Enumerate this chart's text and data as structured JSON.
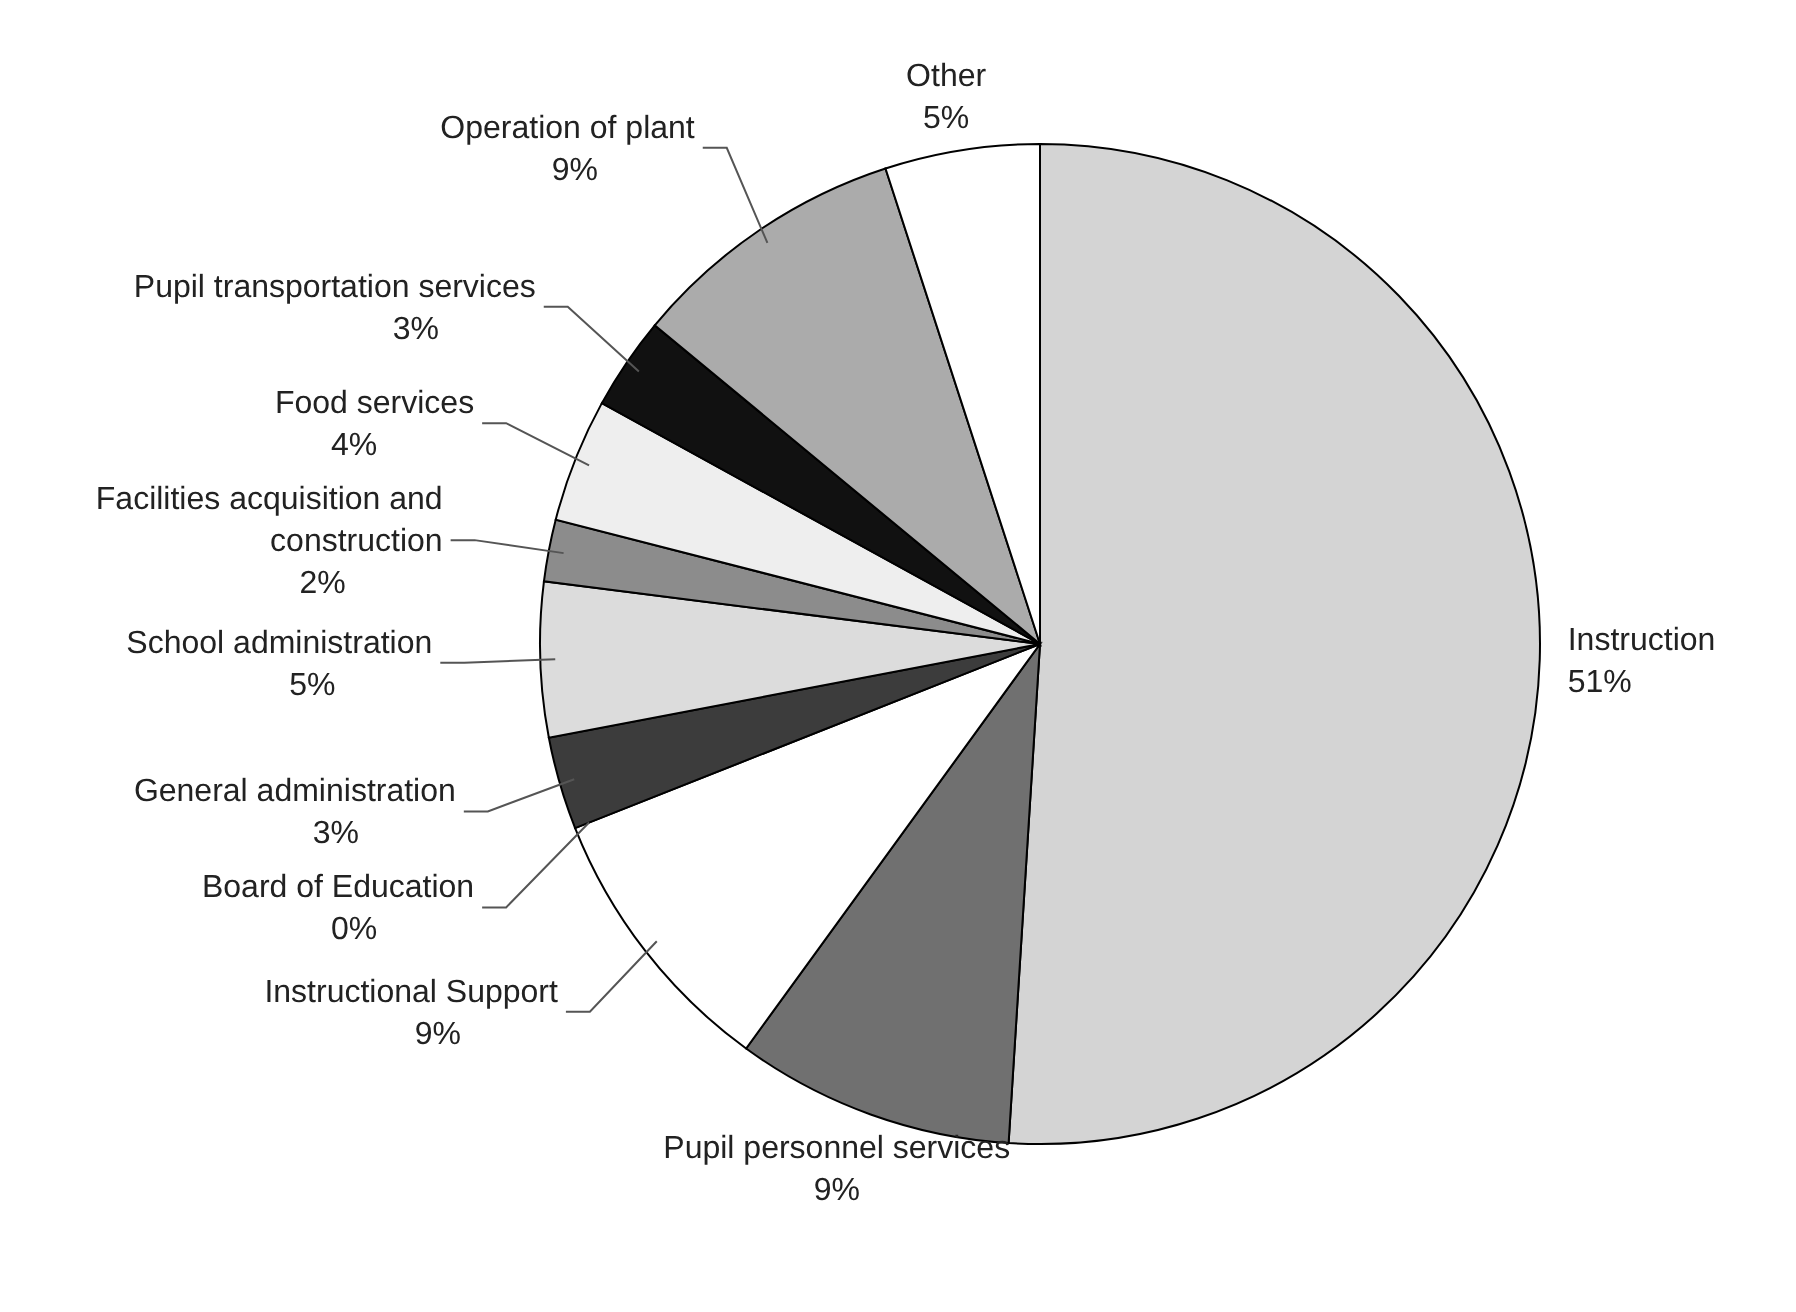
{
  "chart_data": {
    "type": "pie",
    "categories": [
      "Instruction",
      "Pupil personnel services",
      "Instructional Support",
      "Board of Education",
      "General administration",
      "School administration",
      "Facilities acquisition and construction",
      "Food services",
      "Pupil transportation services",
      "Operation of plant",
      "Other"
    ],
    "values": [
      51,
      9,
      9,
      0,
      3,
      5,
      2,
      4,
      3,
      9,
      5
    ],
    "value_labels": [
      "51%",
      "9%",
      "9%",
      "0%",
      "3%",
      "5%",
      "2%",
      "4%",
      "3%",
      "9%",
      "5%"
    ],
    "colors": [
      "#d4d4d4",
      "#707070",
      "#ffffff",
      "#ffffff",
      "#3c3c3c",
      "#dcdcdc",
      "#8c8c8c",
      "#eeeeee",
      "#111111",
      "#ababab",
      "#ffffff"
    ]
  }
}
